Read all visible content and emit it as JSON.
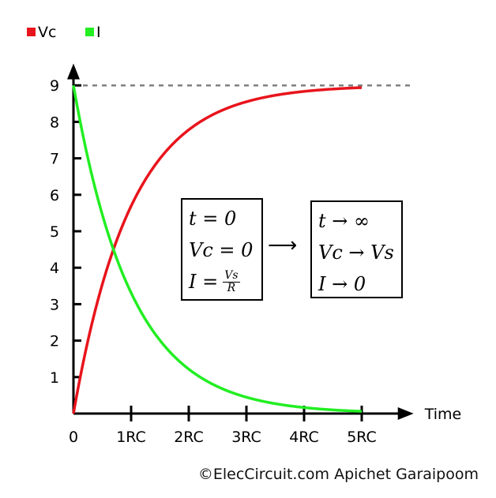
{
  "chart_data": {
    "type": "line",
    "title": "",
    "xlabel": "Time",
    "ylabel": "",
    "xlim": [
      0,
      5.9
    ],
    "ylim": [
      0,
      9.6
    ],
    "x_ticks": [
      "0",
      "1RC",
      "2RC",
      "3RC",
      "4RC",
      "5RC"
    ],
    "x_tick_values": [
      0,
      1,
      2,
      3,
      4,
      5
    ],
    "y_ticks": [
      "1",
      "2",
      "3",
      "4",
      "5",
      "6",
      "7",
      "8",
      "9"
    ],
    "y_tick_values": [
      1,
      2,
      3,
      4,
      5,
      6,
      7,
      8,
      9
    ],
    "reference_line": {
      "y": 9,
      "style": "dashed",
      "color": "#808080"
    },
    "series": [
      {
        "name": "Vc",
        "color": "#e8141c",
        "x": [
          0,
          0.25,
          0.5,
          0.75,
          1,
          1.5,
          2,
          2.5,
          3,
          3.5,
          4,
          4.5,
          5
        ],
        "y": [
          0,
          1.99,
          3.54,
          4.75,
          5.69,
          6.99,
          7.78,
          8.26,
          8.55,
          8.73,
          8.84,
          8.9,
          8.94
        ]
      },
      {
        "name": "I",
        "color": "#22ee22",
        "x": [
          0,
          0.25,
          0.5,
          0.75,
          1,
          1.5,
          2,
          2.5,
          3,
          3.5,
          4,
          4.5,
          5
        ],
        "y": [
          9,
          7.01,
          5.46,
          4.25,
          3.31,
          2.01,
          1.22,
          0.74,
          0.45,
          0.27,
          0.16,
          0.1,
          0.06
        ]
      }
    ],
    "legend_position": "top-left"
  },
  "annotations": {
    "left_box": {
      "line1": "t = 0",
      "line2": "Vc = 0",
      "line3_lhs": "I =",
      "frac_num": "Vs",
      "frac_den": "R"
    },
    "arrow": "⟶",
    "right_box": {
      "line1": "t → ∞",
      "line2": "Vc → Vs",
      "line3": "I → 0"
    }
  },
  "credit": "©ElecCircuit.com Apichet Garaipoom"
}
